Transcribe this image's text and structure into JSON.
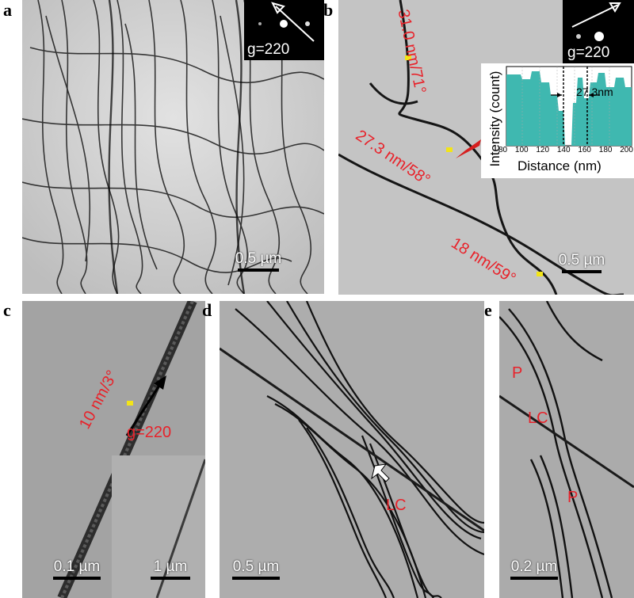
{
  "panels": {
    "a": {
      "label": "a",
      "scale": "0.5 µm",
      "diffraction": "g=220"
    },
    "b": {
      "label": "b",
      "scale": "0.5 µm",
      "diffraction": "g=220",
      "annotations": [
        "31.0 nm/71°",
        "27.3 nm/58°",
        "18 nm/59°"
      ],
      "plot": {
        "ylabel": "Intensity (count)",
        "xlabel": "Distance (nm)",
        "xticks": [
          "80",
          "100",
          "120",
          "140",
          "160",
          "180",
          "200"
        ],
        "width_label": "27.3nm"
      }
    },
    "c": {
      "label": "c",
      "scale": "0.1 µm",
      "inset_scale": "1 µm",
      "annotation": "10 nm/3°",
      "vector": "g=220"
    },
    "d": {
      "label": "d",
      "scale": "0.5 µm",
      "annotation": "LC"
    },
    "e": {
      "label": "e",
      "scale": "0.2 µm",
      "annotations": [
        "P",
        "LC",
        "P"
      ]
    }
  },
  "colors": {
    "annotation": "#e8222a",
    "marker": "#f2e418",
    "plot_fill": "#3fb8b0",
    "arrow": "#d61f1f"
  }
}
